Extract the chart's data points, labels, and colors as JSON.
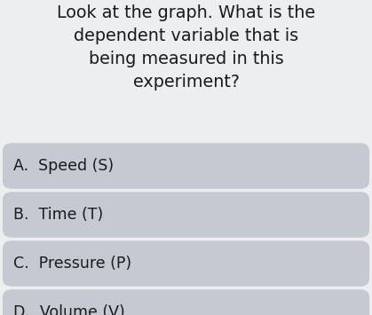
{
  "question_lines": [
    "Look at the graph. What is the",
    "dependent variable that is",
    "being measured in this",
    "experiment?"
  ],
  "options": [
    "A.  Speed (S)",
    "B.  Time (T)",
    "C.  Pressure (P)",
    "D.  Volume (V)"
  ],
  "bg_color": "#edeef0",
  "option_box_color": "#c5cad2",
  "question_text_color": "#1a1a1a",
  "option_text_color": "#1a1a1a",
  "question_fontsize": 13.8,
  "option_fontsize": 12.5,
  "fig_width": 4.19,
  "fig_height": 3.55,
  "dpi": 100
}
